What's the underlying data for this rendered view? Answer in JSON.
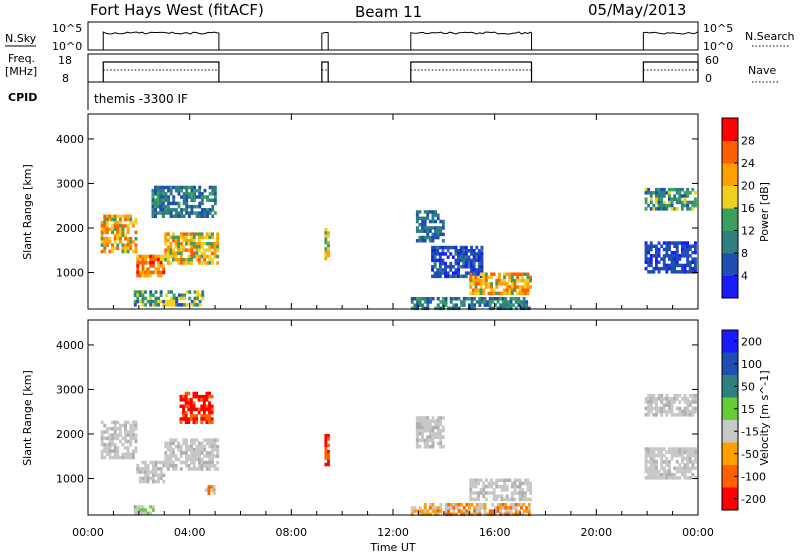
{
  "header": {
    "station": "Fort Hays West (fitACF)",
    "beam": "Beam 11",
    "date": "05/May/2013"
  },
  "status_panels": {
    "nsky_label": "N.Sky",
    "nsearch_label": "N.Search",
    "freq_label_1": "Freq.",
    "freq_label_2": "[MHz]",
    "nave_label": "Nave",
    "cpid_label": "CPID",
    "cpid_text": "themis -3300 IF",
    "noise_ticks_left": [
      "10^5",
      "10^0"
    ],
    "noise_ticks_right": [
      "10^5",
      "10^0"
    ],
    "freq_ticks": [
      "18",
      "8"
    ],
    "nave_ticks": [
      "60",
      "0"
    ]
  },
  "chart_data": [
    {
      "type": "heatmap",
      "name": "Power",
      "xlabel": "Time UT",
      "ylabel": "Slant Range [km]",
      "x_range": [
        0,
        24
      ],
      "y_range": [
        180,
        4560
      ],
      "x_ticks": [
        "00:00",
        "04:00",
        "08:00",
        "12:00",
        "16:00",
        "20:00",
        "00:00"
      ],
      "y_ticks": [
        1000,
        2000,
        3000,
        4000
      ],
      "colorbar_label": "Power [dB]",
      "colorbar_ticks": [
        4,
        8,
        12,
        16,
        20,
        24,
        28
      ],
      "colorbar_range": [
        0,
        32
      ],
      "colors": [
        "#1a1aff",
        "#1e4fb0",
        "#2e7f7f",
        "#3aa060",
        "#f0d020",
        "#ffa000",
        "#ff6000",
        "#ff0000"
      ],
      "echo_regions": [
        {
          "t0": 0.5,
          "t1": 1.9,
          "r0": 1500,
          "r1": 2300,
          "dbmin": 14,
          "dbmax": 28
        },
        {
          "t0": 1.9,
          "t1": 3.0,
          "r0": 900,
          "r1": 1400,
          "dbmin": 18,
          "dbmax": 30
        },
        {
          "t0": 3.0,
          "t1": 5.1,
          "r0": 1200,
          "r1": 1900,
          "dbmin": 14,
          "dbmax": 26
        },
        {
          "t0": 2.5,
          "t1": 5.0,
          "r0": 2300,
          "r1": 2950,
          "dbmin": 4,
          "dbmax": 14
        },
        {
          "t0": 1.8,
          "t1": 4.5,
          "r0": 250,
          "r1": 600,
          "dbmin": 6,
          "dbmax": 20
        },
        {
          "t0": 9.3,
          "t1": 9.45,
          "r0": 1300,
          "r1": 2000,
          "dbmin": 12,
          "dbmax": 24
        },
        {
          "t0": 12.9,
          "t1": 14.0,
          "r0": 1700,
          "r1": 2400,
          "dbmin": 4,
          "dbmax": 12
        },
        {
          "t0": 13.5,
          "t1": 15.5,
          "r0": 900,
          "r1": 1600,
          "dbmin": 2,
          "dbmax": 10
        },
        {
          "t0": 15.0,
          "t1": 17.4,
          "r0": 500,
          "r1": 1000,
          "dbmin": 14,
          "dbmax": 28
        },
        {
          "t0": 12.7,
          "t1": 17.4,
          "r0": 200,
          "r1": 450,
          "dbmin": 4,
          "dbmax": 16
        },
        {
          "t0": 21.9,
          "t1": 23.9,
          "r0": 2400,
          "r1": 2900,
          "dbmin": 6,
          "dbmax": 18
        },
        {
          "t0": 21.9,
          "t1": 23.9,
          "r0": 1000,
          "r1": 1700,
          "dbmin": 2,
          "dbmax": 8
        }
      ]
    },
    {
      "type": "heatmap",
      "name": "Velocity",
      "xlabel": "Time UT",
      "ylabel": "Slant Range [km]",
      "x_range": [
        0,
        24
      ],
      "y_range": [
        180,
        4560
      ],
      "x_ticks": [
        "00:00",
        "04:00",
        "08:00",
        "12:00",
        "16:00",
        "20:00",
        "00:00"
      ],
      "y_ticks": [
        1000,
        2000,
        3000,
        4000
      ],
      "colorbar_label": "Velocity [m s^-1]",
      "colorbar_ticks": [
        "200",
        "100",
        "50",
        "15",
        "-15",
        "-50",
        "-100",
        "-200"
      ],
      "colors": [
        "#1a1aff",
        "#1e4fb0",
        "#2e7f7f",
        "#66cc33",
        "#c8c8c8",
        "#ffa000",
        "#ff6000",
        "#ff0000"
      ],
      "echo_regions": [
        {
          "t0": 0.5,
          "t1": 1.9,
          "r0": 1500,
          "r1": 2300,
          "vtype": "gray"
        },
        {
          "t0": 1.9,
          "t1": 3.0,
          "r0": 900,
          "r1": 1400,
          "vtype": "gray"
        },
        {
          "t0": 3.0,
          "t1": 5.1,
          "r0": 1200,
          "r1": 1900,
          "vtype": "gray"
        },
        {
          "t0": 3.6,
          "t1": 4.9,
          "r0": 2300,
          "r1": 2950,
          "vtype": "red"
        },
        {
          "t0": 1.8,
          "t1": 2.6,
          "r0": 250,
          "r1": 400,
          "vtype": "green"
        },
        {
          "t0": 4.6,
          "t1": 5.0,
          "r0": 650,
          "r1": 850,
          "vtype": "orange"
        },
        {
          "t0": 9.3,
          "t1": 9.45,
          "r0": 1300,
          "r1": 2000,
          "vtype": "red"
        },
        {
          "t0": 12.9,
          "t1": 14.0,
          "r0": 1700,
          "r1": 2400,
          "vtype": "gray"
        },
        {
          "t0": 15.0,
          "t1": 17.4,
          "r0": 500,
          "r1": 1000,
          "vtype": "gray"
        },
        {
          "t0": 12.7,
          "t1": 17.4,
          "r0": 200,
          "r1": 450,
          "vtype": "orange"
        },
        {
          "t0": 21.9,
          "t1": 23.9,
          "r0": 2400,
          "r1": 2900,
          "vtype": "gray"
        },
        {
          "t0": 21.9,
          "t1": 23.9,
          "r0": 1000,
          "r1": 1700,
          "vtype": "gray"
        }
      ]
    }
  ],
  "operation_periods": [
    [
      0.6,
      5.15
    ],
    [
      9.2,
      9.45
    ],
    [
      12.7,
      17.45
    ],
    [
      21.85,
      24.0
    ]
  ]
}
